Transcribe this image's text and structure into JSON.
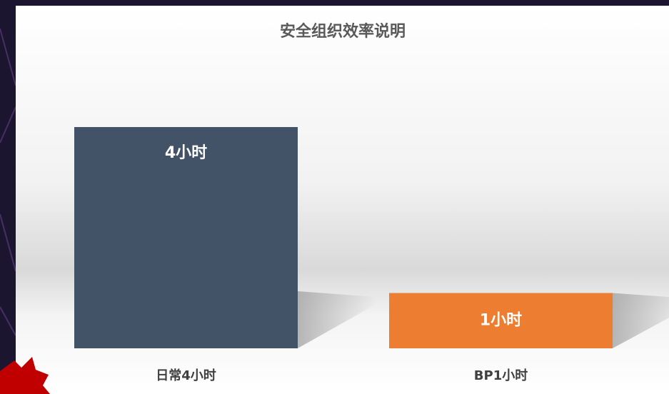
{
  "chart_data": {
    "type": "bar",
    "title": "安全组织效率说明",
    "categories": [
      "日常4小时",
      "BP1小时"
    ],
    "values": [
      4,
      1
    ],
    "value_labels": [
      "4小时",
      "1小时"
    ],
    "colors": [
      "#425368",
      "#ed7d31"
    ]
  }
}
